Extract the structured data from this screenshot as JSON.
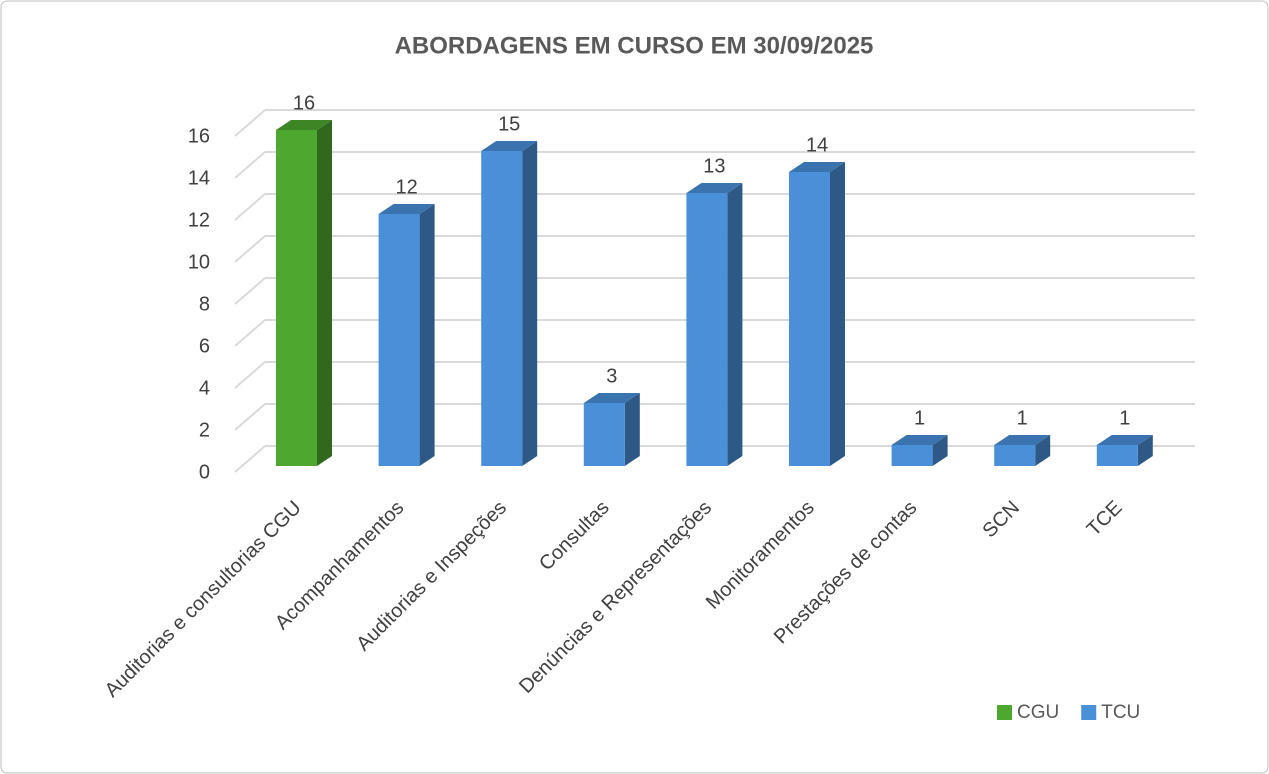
{
  "chart_data": {
    "type": "bar3d",
    "title": "ABORDAGENS EM CURSO EM 30/09/2025",
    "categories": [
      "Auditorias e consultorias CGU",
      "Acompanhamentos",
      "Auditorias e Inspeções",
      "Consultas",
      "Denúncias e Representações",
      "Monitoramentos",
      "Prestações de contas",
      "SCN",
      "TCE"
    ],
    "series": [
      {
        "name": "CGU",
        "color": "#4ea72e",
        "values": [
          16,
          null,
          null,
          null,
          null,
          null,
          null,
          null,
          null
        ]
      },
      {
        "name": "TCU",
        "color": "#4a90d9",
        "values": [
          null,
          12,
          15,
          3,
          13,
          14,
          1,
          1,
          1
        ]
      }
    ],
    "ylim": [
      0,
      16
    ],
    "yticks": [
      0,
      2,
      4,
      6,
      8,
      10,
      12,
      14,
      16
    ],
    "grid": true,
    "legend": "bottom-right"
  }
}
